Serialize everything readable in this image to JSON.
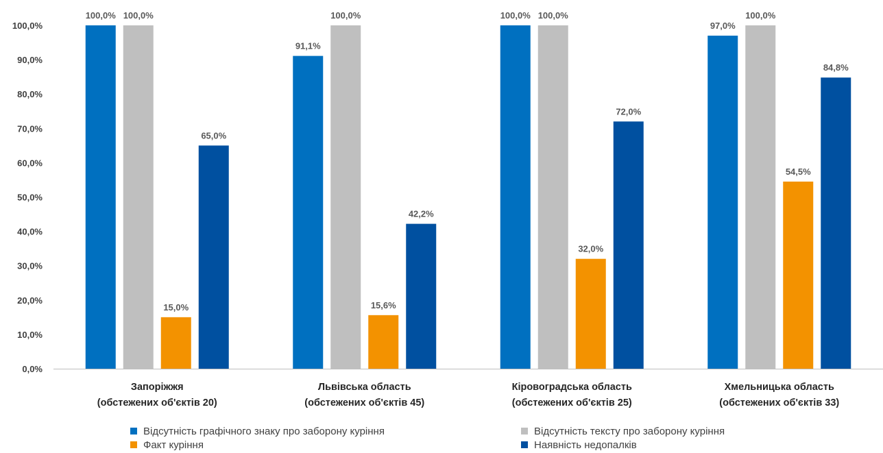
{
  "chart_data": {
    "type": "bar",
    "title": "",
    "xlabel": "",
    "ylabel": "",
    "ylim": [
      0,
      100
    ],
    "y_ticks": [
      "0,0%",
      "10,0%",
      "20,0%",
      "30,0%",
      "40,0%",
      "50,0%",
      "60,0%",
      "70,0%",
      "80,0%",
      "90,0%",
      "100,0%"
    ],
    "grid": false,
    "legend_position": "bottom",
    "categories": [
      {
        "line1": "Запоріжжя",
        "line2": "(обстежених об'єктів 20)"
      },
      {
        "line1": "Львівська область",
        "line2": "(обстежених об'єктів 45)"
      },
      {
        "line1": "Кіровоградська область",
        "line2": "(обстежених об'єктів 25)"
      },
      {
        "line1": "Хмельницька область",
        "line2": "(обстежених об'єктів 33)"
      }
    ],
    "series": [
      {
        "name": "Відсутність графічного знаку про заборону куріння",
        "color": "#0070c0",
        "values": [
          100.0,
          91.1,
          100.0,
          97.0
        ],
        "labels": [
          "100,0%",
          "91,1%",
          "100,0%",
          "97,0%"
        ]
      },
      {
        "name": "Відсутність тексту про заборону куріння",
        "color": "#bfbfbf",
        "values": [
          100.0,
          100.0,
          100.0,
          100.0
        ],
        "labels": [
          "100,0%",
          "100,0%",
          "100,0%",
          "100,0%"
        ]
      },
      {
        "name": "Факт куріння",
        "color": "#f39200",
        "values": [
          15.0,
          15.6,
          32.0,
          54.5
        ],
        "labels": [
          "15,0%",
          "15,6%",
          "32,0%",
          "54,5%"
        ]
      },
      {
        "name": "Наявність недопалків",
        "color": "#0050a0",
        "values": [
          65.0,
          42.2,
          72.0,
          84.8
        ],
        "labels": [
          "65,0%",
          "42,2%",
          "72,0%",
          "84,8%"
        ]
      }
    ]
  }
}
